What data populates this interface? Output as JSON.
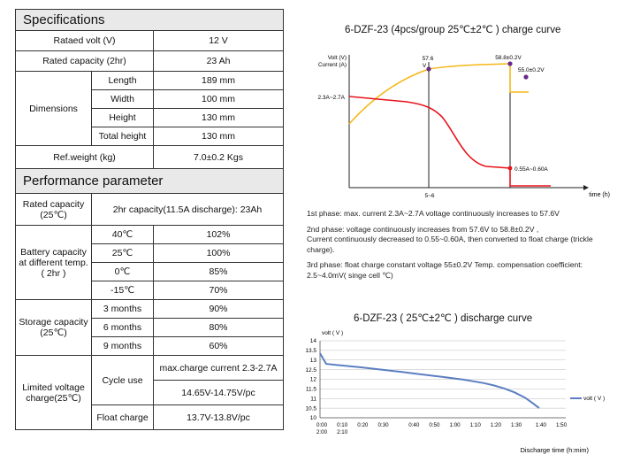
{
  "spec": {
    "section_title": "Specifications",
    "rows": {
      "rated_volt_label": "Rataed volt (V)",
      "rated_volt_value": "12 V",
      "rated_cap_label": "Rated capacity (2hr)",
      "rated_cap_value": "23 Ah",
      "dimensions_label": "Dimensions",
      "length_label": "Length",
      "length_value": "189 mm",
      "width_label": "Width",
      "width_value": "100 mm",
      "height_label": "Height",
      "height_value": "130 mm",
      "total_height_label": "Total height",
      "total_height_value": "130 mm",
      "weight_label": "Ref.weight (kg)",
      "weight_value": "7.0±0.2 Kgs"
    }
  },
  "perf": {
    "section_title": "Performance parameter",
    "rated_cap_label": "Rated capacity (25℃)",
    "rated_cap_value": "2hr capacity(11.5A discharge): 23Ah",
    "battery_cap_label": "Battery capacity at different temp. ( 2hr )",
    "temps": [
      {
        "t": "40℃",
        "v": "102%"
      },
      {
        "t": "25℃",
        "v": "100%"
      },
      {
        "t": "0℃",
        "v": "85%"
      },
      {
        "t": "-15℃",
        "v": "70%"
      }
    ],
    "storage_label": "Storage capacity (25℃)",
    "storage": [
      {
        "t": "3 months",
        "v": "90%"
      },
      {
        "t": "6 months",
        "v": "80%"
      },
      {
        "t": "9 months",
        "v": "60%"
      }
    ],
    "limited_label": "Limited voltage charge(25℃)",
    "cycle_label": "Cycle use",
    "cycle_current": "max.charge current 2.3-2.7A",
    "cycle_voltage": "14.65V-14.75V/pc",
    "float_label": "Float charge",
    "float_value": "13.7V-13.8V/pc"
  },
  "charge": {
    "title": "6-DZF-23 (4pcs/group  25℃±2℃ ) charge curve",
    "y_label_1": "Volt (V)",
    "y_label_2": "Current (A)",
    "x_label": "time (h)",
    "x_tick": "5~6",
    "ann_576": "57.6",
    "ann_576_unit": "V",
    "ann_588": "58.8±0.2V",
    "ann_550": "55.0±0.2V",
    "ann_current": "2.3A~2.7A",
    "ann_float_current": "0.55A~0.60A",
    "colors": {
      "voltage": "#f5b817",
      "current": "#e8141c",
      "marker": "#6a2a8c"
    },
    "notes": {
      "p1": "1st phase: max. current 2.3A~2.7A voltage continuously increases to 57.6V",
      "p2a": "2nd phase: voltage continuously increases from 57.6V to 58.8±0.2V ,",
      "p2b": "Current continuously decreased to 0.55~0.60A, then converted to float charge (trickle charge).",
      "p3": "3rd phase: float charge constant voltage 55±0.2V  Temp. compensation coefficient: 2.5~4.0mV( singe cell ℃)"
    }
  },
  "chart_data": {
    "type": "line",
    "title": "6-DZF-23 ( 25℃±2℃ ) discharge curve",
    "ylabel": "volt ( V )",
    "xlabel": "Discharge time (h:mim)",
    "ylim": [
      10,
      14
    ],
    "yticks": [
      "14",
      "13.5",
      "13",
      "12.5",
      "12",
      "11.5",
      "11",
      "10.5",
      "10"
    ],
    "xticks_row1": [
      "0:00",
      "0:10",
      "0:20",
      "0:30",
      "0:40",
      "0:50",
      "1:00",
      "1:10",
      "1:20",
      "1:30",
      "1:40",
      "1:50"
    ],
    "xticks_row2": [
      "2:00",
      "2:10"
    ],
    "legend": "volt ( V )",
    "color": "#5b7fc2",
    "series": [
      {
        "name": "volt ( V )",
        "x_min": [
          0,
          3,
          10,
          20,
          30,
          40,
          50,
          60,
          70,
          80,
          85,
          90,
          95,
          100,
          104,
          107
        ],
        "values": [
          13.35,
          12.8,
          12.72,
          12.62,
          12.5,
          12.38,
          12.25,
          12.12,
          11.98,
          11.8,
          11.68,
          11.52,
          11.32,
          11.05,
          10.75,
          10.5
        ]
      }
    ]
  }
}
